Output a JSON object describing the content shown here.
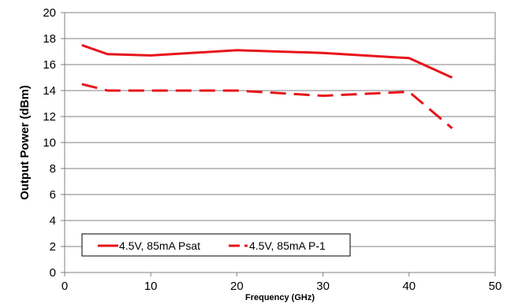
{
  "chart_data": {
    "type": "line",
    "xlabel": "Frequency (GHz)",
    "ylabel": "Output Power (dBm)",
    "xlim": [
      0,
      50
    ],
    "ylim": [
      0,
      20
    ],
    "x_ticks": [
      0,
      10,
      20,
      30,
      40,
      50
    ],
    "y_ticks": [
      0,
      2,
      4,
      6,
      8,
      10,
      12,
      14,
      16,
      18,
      20
    ],
    "grid": "horizontal",
    "legend_position": "bottom-left",
    "series": [
      {
        "name": "4.5V, 85mA Psat",
        "style": "solid",
        "color": "#e8141b",
        "x": [
          2,
          5,
          10,
          20,
          30,
          40,
          45
        ],
        "y": [
          17.5,
          16.8,
          16.7,
          17.1,
          16.9,
          16.5,
          15.0
        ]
      },
      {
        "name": "4.5V, 85mA P-1",
        "style": "dashed",
        "color": "#e8141b",
        "x": [
          2,
          5,
          10,
          20,
          30,
          40,
          45
        ],
        "y": [
          14.5,
          14.0,
          14.0,
          14.0,
          13.6,
          13.9,
          11.1
        ]
      }
    ]
  }
}
